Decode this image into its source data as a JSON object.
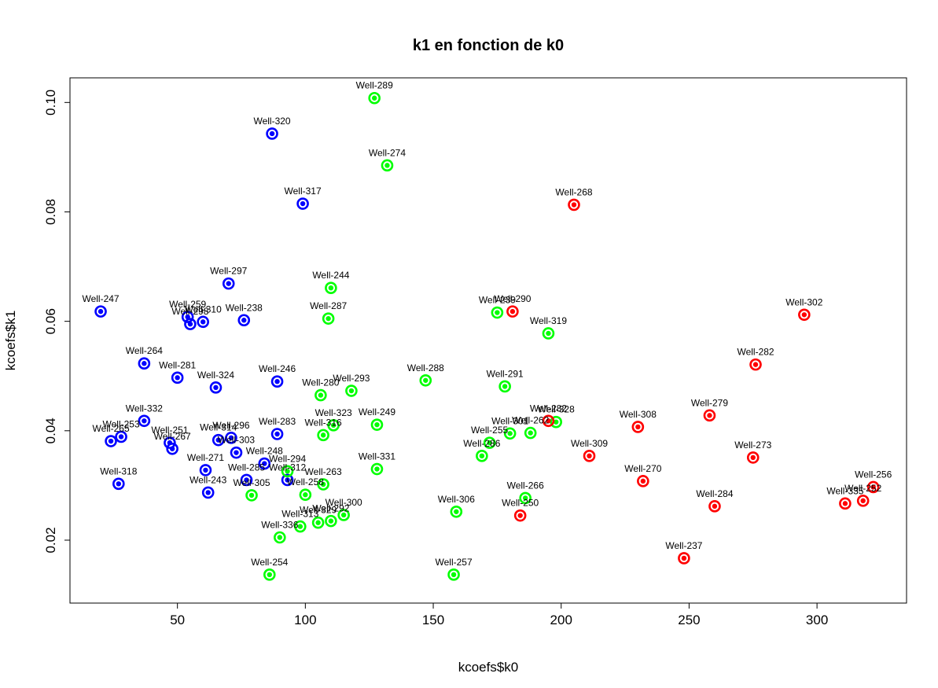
{
  "chart_data": {
    "type": "scatter",
    "title": "k1 en fonction de k0",
    "xlabel": "kcoefs$k0",
    "ylabel": "kcoefs$k1",
    "xlim": [
      8,
      335
    ],
    "ylim": [
      0.0085,
      0.1045
    ],
    "xticks": [
      50,
      100,
      150,
      200,
      250,
      300
    ],
    "yticks": [
      0.02,
      0.04,
      0.06,
      0.08,
      0.1
    ],
    "ytick_labels": [
      "0.02",
      "0.04",
      "0.06",
      "0.08",
      "0.10"
    ],
    "grid": false,
    "legend": "none",
    "groups": [
      {
        "color": "#0000ff",
        "points": [
          {
            "label": "Well-247",
            "x": 20,
            "y": 0.0618
          },
          {
            "label": "Well-320",
            "x": 87,
            "y": 0.0943
          },
          {
            "label": "Well-317",
            "x": 99,
            "y": 0.0815
          },
          {
            "label": "Well-297",
            "x": 70,
            "y": 0.0669
          },
          {
            "label": "Well-259",
            "x": 54,
            "y": 0.0608
          },
          {
            "label": "Well-298",
            "x": 55,
            "y": 0.0595
          },
          {
            "label": "Well-310",
            "x": 60,
            "y": 0.0599
          },
          {
            "label": "Well-238",
            "x": 76,
            "y": 0.0602
          },
          {
            "label": "Well-264",
            "x": 37,
            "y": 0.0523
          },
          {
            "label": "Well-281",
            "x": 50,
            "y": 0.0497
          },
          {
            "label": "Well-324",
            "x": 65,
            "y": 0.0479
          },
          {
            "label": "Well-246",
            "x": 89,
            "y": 0.049
          },
          {
            "label": "Well-332",
            "x": 37,
            "y": 0.0418
          },
          {
            "label": "Well-253",
            "x": 28,
            "y": 0.0389
          },
          {
            "label": "Well-265",
            "x": 24,
            "y": 0.0381
          },
          {
            "label": "Well-251",
            "x": 47,
            "y": 0.0378
          },
          {
            "label": "Well-267",
            "x": 48,
            "y": 0.0367
          },
          {
            "label": "Well-314",
            "x": 66,
            "y": 0.0383
          },
          {
            "label": "Well-296",
            "x": 71,
            "y": 0.0387
          },
          {
            "label": "Well-303",
            "x": 73,
            "y": 0.036
          },
          {
            "label": "Well-283",
            "x": 89,
            "y": 0.0394
          },
          {
            "label": "Well-271",
            "x": 61,
            "y": 0.0328
          },
          {
            "label": "Well-318",
            "x": 27,
            "y": 0.0303
          },
          {
            "label": "Well-243",
            "x": 62,
            "y": 0.0287
          },
          {
            "label": "Well-285",
            "x": 77,
            "y": 0.031
          },
          {
            "label": "Well-248",
            "x": 84,
            "y": 0.034
          },
          {
            "label": "Well-312",
            "x": 93,
            "y": 0.031
          }
        ]
      },
      {
        "color": "#00ff00",
        "points": [
          {
            "label": "Well-289",
            "x": 127,
            "y": 0.1008
          },
          {
            "label": "Well-274",
            "x": 132,
            "y": 0.0885
          },
          {
            "label": "Well-244",
            "x": 110,
            "y": 0.0661
          },
          {
            "label": "Well-287",
            "x": 109,
            "y": 0.0605
          },
          {
            "label": "Well-239",
            "x": 175,
            "y": 0.0616
          },
          {
            "label": "Well-319",
            "x": 195,
            "y": 0.0578
          },
          {
            "label": "Well-288",
            "x": 147,
            "y": 0.0492
          },
          {
            "label": "Well-291",
            "x": 178,
            "y": 0.0481
          },
          {
            "label": "Well-280",
            "x": 106,
            "y": 0.0465
          },
          {
            "label": "Well-293",
            "x": 118,
            "y": 0.0473
          },
          {
            "label": "Well-323",
            "x": 111,
            "y": 0.041
          },
          {
            "label": "Well-316",
            "x": 107,
            "y": 0.0392
          },
          {
            "label": "Well-249",
            "x": 128,
            "y": 0.0411
          },
          {
            "label": "Well-301",
            "x": 180,
            "y": 0.0395
          },
          {
            "label": "Well-262",
            "x": 188,
            "y": 0.0396
          },
          {
            "label": "Well-328",
            "x": 198,
            "y": 0.0416
          },
          {
            "label": "Well-255",
            "x": 172,
            "y": 0.0378
          },
          {
            "label": "Well-286",
            "x": 169,
            "y": 0.0354
          },
          {
            "label": "Well-331",
            "x": 128,
            "y": 0.033
          },
          {
            "label": "Well-294",
            "x": 93,
            "y": 0.0326
          },
          {
            "label": "Well-263",
            "x": 107,
            "y": 0.0302
          },
          {
            "label": "Well-305",
            "x": 79,
            "y": 0.0282
          },
          {
            "label": "Well-258",
            "x": 100,
            "y": 0.0283
          },
          {
            "label": "Well-266",
            "x": 186,
            "y": 0.0277
          },
          {
            "label": "Well-306",
            "x": 159,
            "y": 0.0252
          },
          {
            "label": "Well-300",
            "x": 115,
            "y": 0.0246
          },
          {
            "label": "Well-292",
            "x": 110,
            "y": 0.0235
          },
          {
            "label": "Well-329",
            "x": 105,
            "y": 0.0232
          },
          {
            "label": "Well-313",
            "x": 98,
            "y": 0.0225
          },
          {
            "label": "Well-336",
            "x": 90,
            "y": 0.0205
          },
          {
            "label": "Well-254",
            "x": 86,
            "y": 0.0137
          },
          {
            "label": "Well-257",
            "x": 158,
            "y": 0.0137
          }
        ]
      },
      {
        "color": "#ff0000",
        "points": [
          {
            "label": "Well-268",
            "x": 205,
            "y": 0.0813
          },
          {
            "label": "Well-290",
            "x": 181,
            "y": 0.0618
          },
          {
            "label": "Well-302",
            "x": 295,
            "y": 0.0612
          },
          {
            "label": "Well-282",
            "x": 276,
            "y": 0.0521
          },
          {
            "label": "Well-279",
            "x": 258,
            "y": 0.0428
          },
          {
            "label": "Well-308",
            "x": 230,
            "y": 0.0407
          },
          {
            "label": "Well-282b",
            "x": 195,
            "y": 0.0418,
            "display": "Well-282"
          },
          {
            "label": "Well-273",
            "x": 275,
            "y": 0.0351
          },
          {
            "label": "Well-309",
            "x": 211,
            "y": 0.0354
          },
          {
            "label": "Well-270",
            "x": 232,
            "y": 0.0308
          },
          {
            "label": "Well-256",
            "x": 322,
            "y": 0.0297
          },
          {
            "label": "Well-252",
            "x": 318,
            "y": 0.0272
          },
          {
            "label": "Well-335",
            "x": 311,
            "y": 0.0267
          },
          {
            "label": "Well-284",
            "x": 260,
            "y": 0.0262
          },
          {
            "label": "Well-250",
            "x": 184,
            "y": 0.0245
          },
          {
            "label": "Well-237",
            "x": 248,
            "y": 0.0167
          }
        ]
      }
    ]
  }
}
